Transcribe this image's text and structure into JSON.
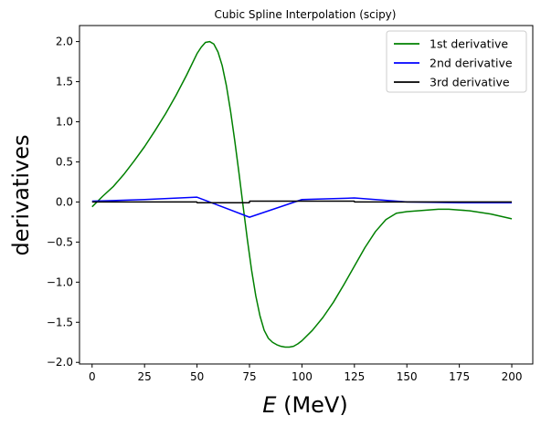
{
  "chart_data": {
    "type": "line",
    "title": "Cubic Spline Interpolation (scipy)",
    "xlabel_italic": "E",
    "xlabel_rest": " (MeV)",
    "ylabel": "derivatives",
    "xlim": [
      -6,
      210
    ],
    "ylim": [
      -2.02,
      2.2
    ],
    "xticks": [
      0,
      25,
      50,
      75,
      100,
      125,
      150,
      175,
      200
    ],
    "xtick_labels": [
      "0",
      "25",
      "50",
      "75",
      "100",
      "125",
      "150",
      "175",
      "200"
    ],
    "yticks": [
      2.0,
      1.5,
      1.0,
      0.5,
      0.0,
      -0.5,
      -1.0,
      -1.5,
      -2.0
    ],
    "ytick_labels": [
      "2.0",
      "1.5",
      "1.0",
      "0.5",
      "0.0",
      "−0.5",
      "−1.0",
      "−1.5",
      "−2.0"
    ],
    "grid": false,
    "legend_position": "top-right",
    "series": [
      {
        "name": "1st derivative",
        "color": "#008000",
        "x": [
          0,
          5,
          10,
          15,
          20,
          25,
          30,
          35,
          40,
          45,
          50,
          52,
          54,
          56,
          58,
          60,
          62,
          64,
          66,
          68,
          70,
          72,
          74,
          76,
          78,
          80,
          82,
          84,
          86,
          88,
          90,
          92,
          94,
          96,
          98,
          100,
          105,
          110,
          115,
          120,
          125,
          130,
          135,
          140,
          145,
          150,
          155,
          160,
          165,
          170,
          175,
          180,
          185,
          190,
          195,
          200
        ],
        "y": [
          -0.06,
          0.07,
          0.19,
          0.34,
          0.51,
          0.69,
          0.89,
          1.1,
          1.33,
          1.58,
          1.85,
          1.93,
          1.99,
          2.0,
          1.97,
          1.87,
          1.7,
          1.45,
          1.13,
          0.76,
          0.36,
          -0.06,
          -0.47,
          -0.85,
          -1.17,
          -1.42,
          -1.6,
          -1.7,
          -1.75,
          -1.78,
          -1.8,
          -1.81,
          -1.81,
          -1.8,
          -1.77,
          -1.73,
          -1.6,
          -1.44,
          -1.25,
          -1.03,
          -0.8,
          -0.57,
          -0.37,
          -0.22,
          -0.14,
          -0.12,
          -0.11,
          -0.1,
          -0.09,
          -0.09,
          -0.1,
          -0.11,
          -0.13,
          -0.15,
          -0.18,
          -0.21
        ]
      },
      {
        "name": "2nd derivative",
        "color": "#0000ff",
        "x": [
          0,
          25,
          50,
          75,
          100,
          125,
          150,
          175,
          200
        ],
        "y": [
          0.01,
          0.03,
          0.06,
          -0.19,
          0.03,
          0.05,
          0.0,
          -0.01,
          -0.01
        ]
      },
      {
        "name": "3rd derivative",
        "color": "#000000",
        "x": [
          0,
          49.9,
          50.1,
          74.9,
          75.1,
          124.9,
          125.1,
          149.9,
          150.1,
          200
        ],
        "y": [
          0.0,
          0.0,
          -0.01,
          -0.01,
          0.01,
          0.01,
          0.0,
          0.0,
          0.0,
          0.0
        ]
      }
    ]
  }
}
